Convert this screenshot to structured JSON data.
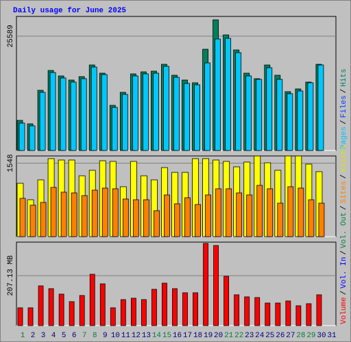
{
  "title": "Daily usage for June 2025",
  "separator": "/",
  "x_labels": [
    "1",
    "2",
    "3",
    "4",
    "5",
    "6",
    "7",
    "8",
    "9",
    "10",
    "11",
    "12",
    "13",
    "14",
    "15",
    "16",
    "17",
    "18",
    "19",
    "20",
    "21",
    "22",
    "23",
    "24",
    "25",
    "26",
    "27",
    "28",
    "29",
    "30",
    "31"
  ],
  "x_label_colors": [
    "#008040",
    "#000080",
    "#000080",
    "#000080",
    "#000080",
    "#000080",
    "#008040",
    "#008040",
    "#000080",
    "#000080",
    "#000080",
    "#000080",
    "#000080",
    "#008040",
    "#008040",
    "#000080",
    "#000080",
    "#000080",
    "#000080",
    "#000080",
    "#008040",
    "#008040",
    "#000080",
    "#000080",
    "#000080",
    "#000080",
    "#000080",
    "#008040",
    "#008040",
    "#000080",
    "#000080"
  ],
  "chart_data": [
    {
      "type": "bar",
      "ylim": [
        0,
        30000
      ],
      "yticks": [
        25589
      ],
      "legend": [
        {
          "name": "Pages",
          "color": "#00c0ff"
        },
        {
          "name": "Files",
          "color": "#0040ff"
        },
        {
          "name": "Hits",
          "color": "#008060"
        }
      ],
      "series": [
        {
          "name": "Hits",
          "color": "#00805c",
          "values": [
            6735,
            5969,
            13469,
            17908,
            16684,
            15765,
            16531,
            19133,
            17296,
            10102,
            13010,
            17143,
            17602,
            17755,
            19286,
            16837,
            15765,
            15153,
            22653,
            29235,
            25867,
            22500,
            17296,
            16071,
            19133,
            16837,
            13163,
            13776,
            15306,
            19286,
            null
          ]
        },
        {
          "name": "Pages",
          "color": "#00c8ff",
          "values": [
            6122,
            5510,
            13010,
            17449,
            16224,
            15306,
            16071,
            18673,
            16990,
            9643,
            12551,
            16684,
            17143,
            17296,
            18827,
            16378,
            15000,
            14694,
            19592,
            24949,
            25102,
            21888,
            16684,
            15918,
            18520,
            15918,
            12704,
            13316,
            15153,
            19133,
            null
          ]
        }
      ]
    },
    {
      "type": "bar",
      "ylim": [
        0,
        1700
      ],
      "yticks": [
        1548
      ],
      "series": [
        {
          "name": "Visits",
          "color": "#ffff00",
          "values": [
            1124,
            778,
            1196,
            1643,
            1614,
            1614,
            1282,
            1398,
            1599,
            1585,
            1052,
            1585,
            1282,
            1196,
            1455,
            1354,
            1354,
            1643,
            1643,
            1614,
            1585,
            1470,
            1571,
            1700,
            1556,
            1398,
            1700,
            1700,
            1527,
            1369,
            null
          ]
        },
        {
          "name": "Sites",
          "color": "#ff8000",
          "values": [
            807,
            663,
            721,
            1038,
            937,
            922,
            865,
            980,
            1023,
            1009,
            793,
            778,
            778,
            548,
            879,
            692,
            821,
            677,
            879,
            1009,
            1009,
            922,
            879,
            1081,
            1009,
            706,
            1052,
            1023,
            778,
            706,
            null
          ]
        }
      ]
    },
    {
      "type": "bar",
      "ylim": [
        0,
        346
      ],
      "yticks": [
        {
          "value": 207.13,
          "label": "207.13 MB"
        }
      ],
      "legend": [
        {
          "name": "Volume",
          "color": "#ff0000"
        },
        {
          "name": "Vol. In",
          "color": "#0000ff"
        },
        {
          "name": "Vol. Out",
          "color": "#008040"
        },
        {
          "name": "Sites",
          "color": "#ff8000"
        },
        {
          "name": "Visits",
          "color": "#e0e000"
        }
      ],
      "series": [
        {
          "name": "Volume",
          "color": "#ff0000",
          "values": [
            73.8,
            73.8,
            164.6,
            153.2,
            130.5,
            99.3,
            124.8,
            212.8,
            173.1,
            73.8,
            107.8,
            113.5,
            107.8,
            150.4,
            175.9,
            153.2,
            136.2,
            136.2,
            340.5,
            331.9,
            204.3,
            127.7,
            119.2,
            116.3,
            93.6,
            93.6,
            102.1,
            82.3,
            90.8,
            127.7,
            null
          ]
        }
      ]
    }
  ]
}
